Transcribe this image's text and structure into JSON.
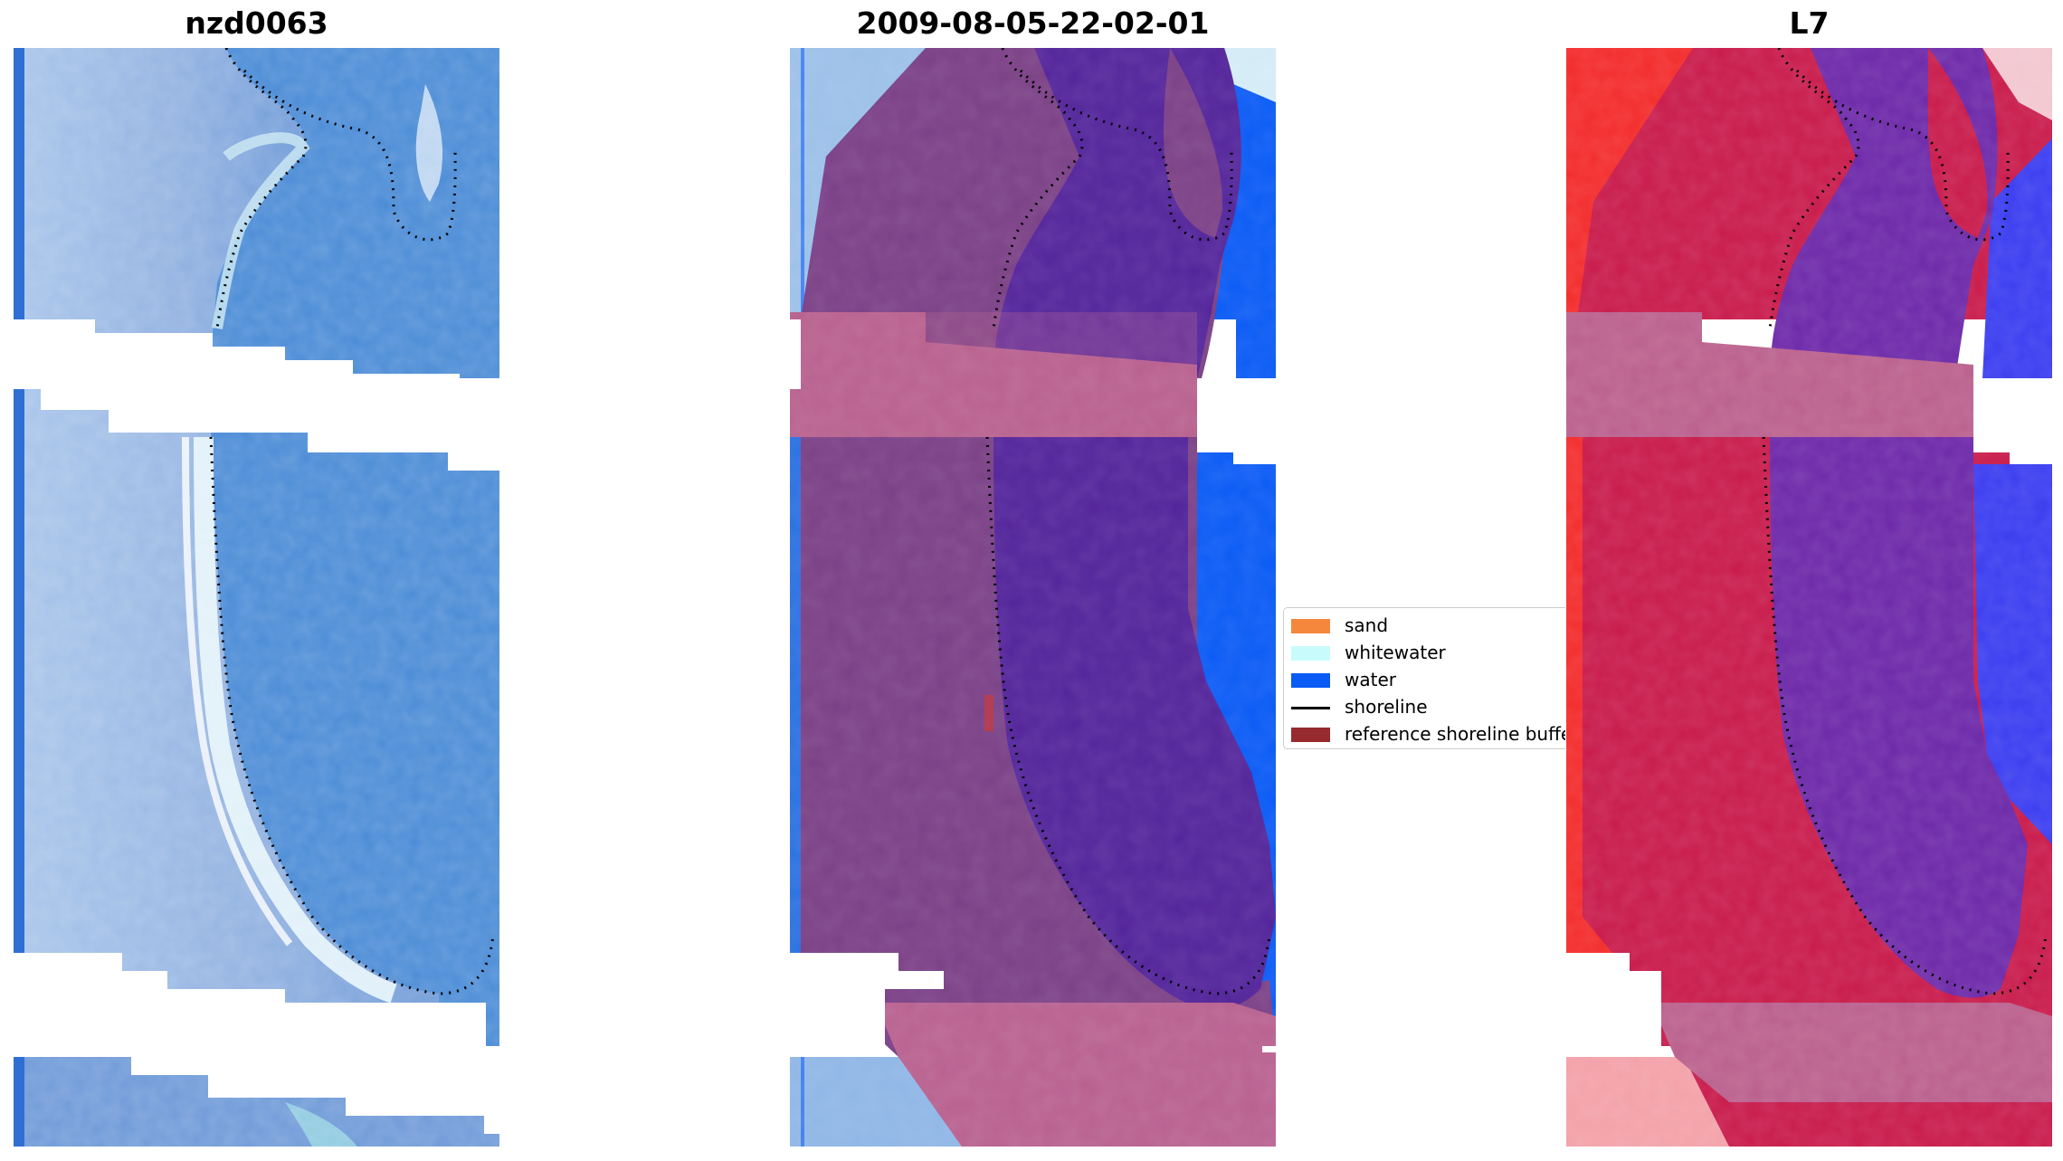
{
  "titles": {
    "left": "nzd0063",
    "middle": "2009-08-05-22-02-01",
    "right": "L7"
  },
  "legend": {
    "items": [
      {
        "label": "sand",
        "color": "#f5873d",
        "kind": "patch"
      },
      {
        "label": "whitewater",
        "color": "#c8fcfc",
        "kind": "patch"
      },
      {
        "label": "water",
        "color": "#0a5af5",
        "kind": "patch"
      },
      {
        "label": "shoreline",
        "color": "#000000",
        "kind": "line"
      },
      {
        "label": "reference shoreline buffer",
        "color": "#962a2e",
        "kind": "patch"
      }
    ]
  },
  "colors": {
    "rgb_water": "#3f86d2",
    "rgb_land": "#8fb3e0",
    "rgb_foam": "#e8f6fb",
    "class_water": "#0a5af5",
    "class_land_overlay": "#7a3f85",
    "class_water_overlay": "#52239a",
    "buffer_overlay": "#b8608f",
    "mndwi_land": "#c8194a",
    "mndwi_water": "#6c27a8",
    "mndwi_edge_red": "#f32a2a",
    "mndwi_edge_blue": "#3a3cf0"
  }
}
